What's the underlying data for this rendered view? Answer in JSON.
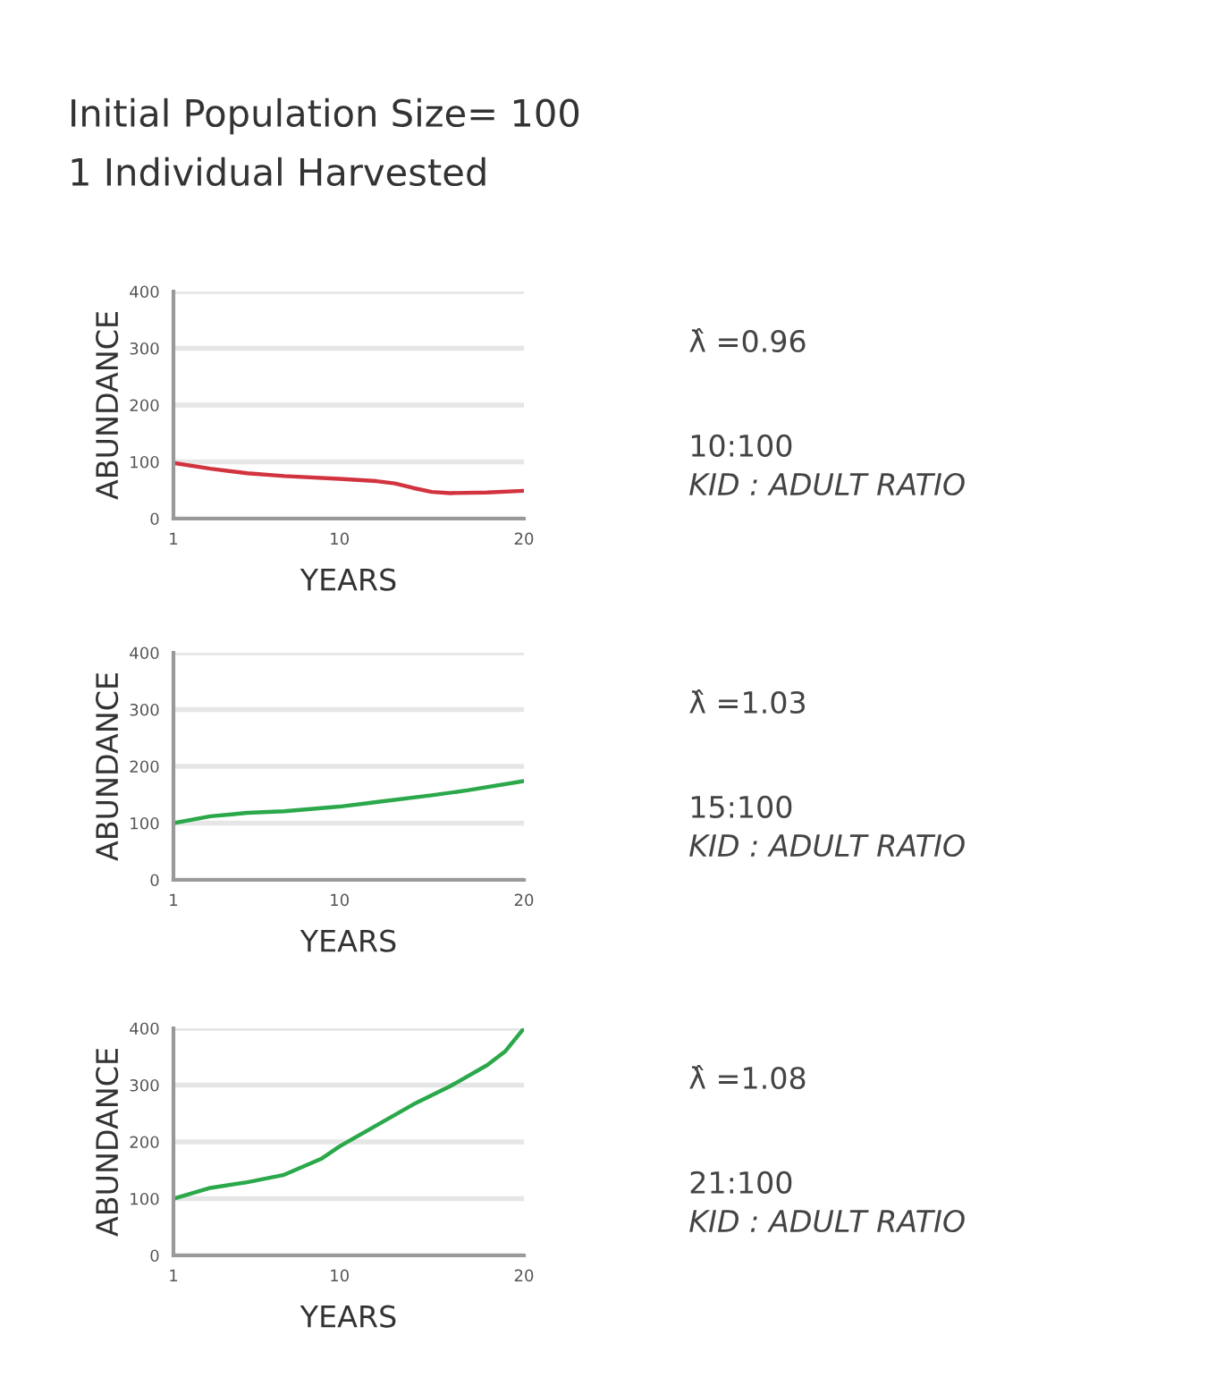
{
  "chart_data": [
    {
      "type": "line",
      "title": "Initial Population Size= 100",
      "subtitle": "1 Individual Harvested",
      "xlabel": "YEARS",
      "ylabel": "ABUNDANCE",
      "x": [
        1,
        3,
        5,
        7,
        10,
        12,
        13,
        14,
        15,
        16,
        18,
        20
      ],
      "series": [
        {
          "color": "#d2343f",
          "values": [
            98,
            88,
            80,
            75,
            70,
            66,
            62,
            54,
            47,
            45,
            46,
            49
          ]
        }
      ],
      "xlim": [
        1,
        20
      ],
      "xticks": [
        1,
        10,
        20
      ],
      "ylim": [
        0,
        400
      ],
      "yticks": [
        0,
        100,
        200,
        300,
        400
      ],
      "grid": "y",
      "annotations": [
        "λ̂ =0.96",
        "10:100",
        "KID : ADULT RATIO"
      ]
    },
    {
      "type": "line",
      "xlabel": "YEARS",
      "ylabel": "ABUNDANCE",
      "x": [
        1,
        3,
        5,
        7,
        10,
        12,
        15,
        17,
        20
      ],
      "series": [
        {
          "color": "#2aa84a",
          "values": [
            100,
            112,
            118,
            121,
            129,
            137,
            149,
            158,
            174
          ]
        }
      ],
      "xlim": [
        1,
        20
      ],
      "xticks": [
        1,
        10,
        20
      ],
      "ylim": [
        0,
        400
      ],
      "yticks": [
        0,
        100,
        200,
        300,
        400
      ],
      "grid": "y",
      "annotations": [
        "λ̂ =1.03",
        "15:100",
        "KID : ADULT RATIO"
      ]
    },
    {
      "type": "line",
      "xlabel": "YEARS",
      "ylabel": "ABUNDANCE",
      "x": [
        1,
        3,
        5,
        7,
        9,
        10,
        12,
        14,
        16,
        18,
        19,
        20
      ],
      "series": [
        {
          "color": "#2aa84a",
          "values": [
            100,
            119,
            129,
            142,
            170,
            192,
            229,
            266,
            298,
            335,
            360,
            400
          ]
        }
      ],
      "xlim": [
        1,
        20
      ],
      "xticks": [
        1,
        10,
        20
      ],
      "ylim": [
        0,
        400
      ],
      "yticks": [
        0,
        100,
        200,
        300,
        400
      ],
      "grid": "y",
      "annotations": [
        "λ̂ =1.08",
        "21:100",
        "KID : ADULT RATIO"
      ]
    }
  ]
}
